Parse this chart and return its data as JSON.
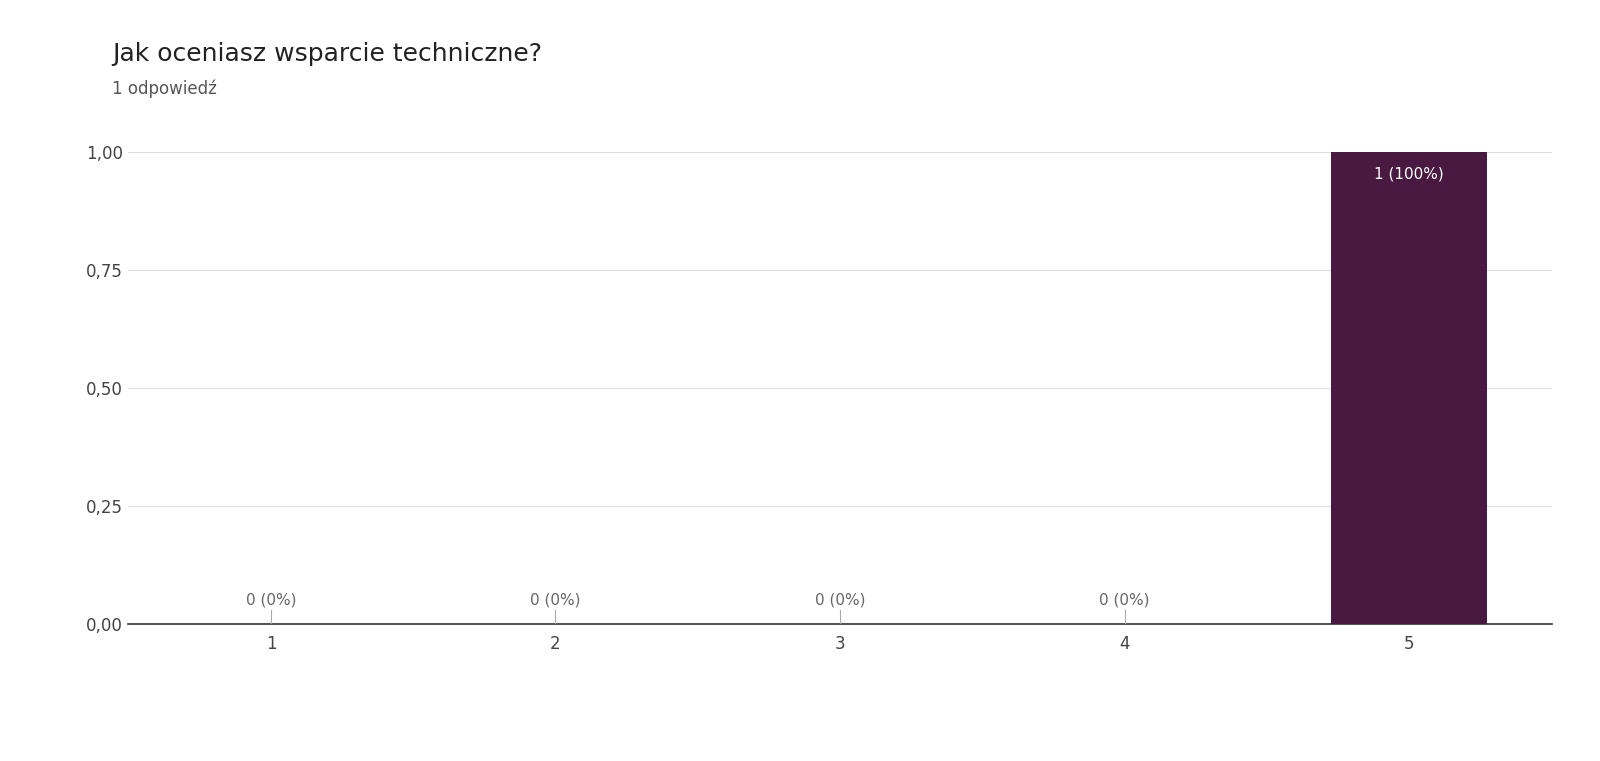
{
  "title": "Jak oceniasz wsparcie techniczne?",
  "subtitle": "1 odpowiedź",
  "categories": [
    1,
    2,
    3,
    4,
    5
  ],
  "values": [
    0,
    0,
    0,
    0,
    1.0
  ],
  "bar_labels": [
    "0 (0%)",
    "0 (0%)",
    "0 (0%)",
    "0 (0%)",
    "1 (100%)"
  ],
  "bar_color": "#4a1942",
  "bar_label_color_inside": "#ffffff",
  "bar_label_color_outside": "#666666",
  "background_color": "#ffffff",
  "plot_bg_color": "#ffffff",
  "ylim": [
    0,
    1.0
  ],
  "yticks": [
    0.0,
    0.25,
    0.5,
    0.75,
    1.0
  ],
  "ytick_labels": [
    "0,00",
    "0,25",
    "0,50",
    "0,75",
    "1,00"
  ],
  "title_fontsize": 18,
  "subtitle_fontsize": 12,
  "tick_fontsize": 12,
  "label_fontsize": 11,
  "grid_color": "#dddddd"
}
